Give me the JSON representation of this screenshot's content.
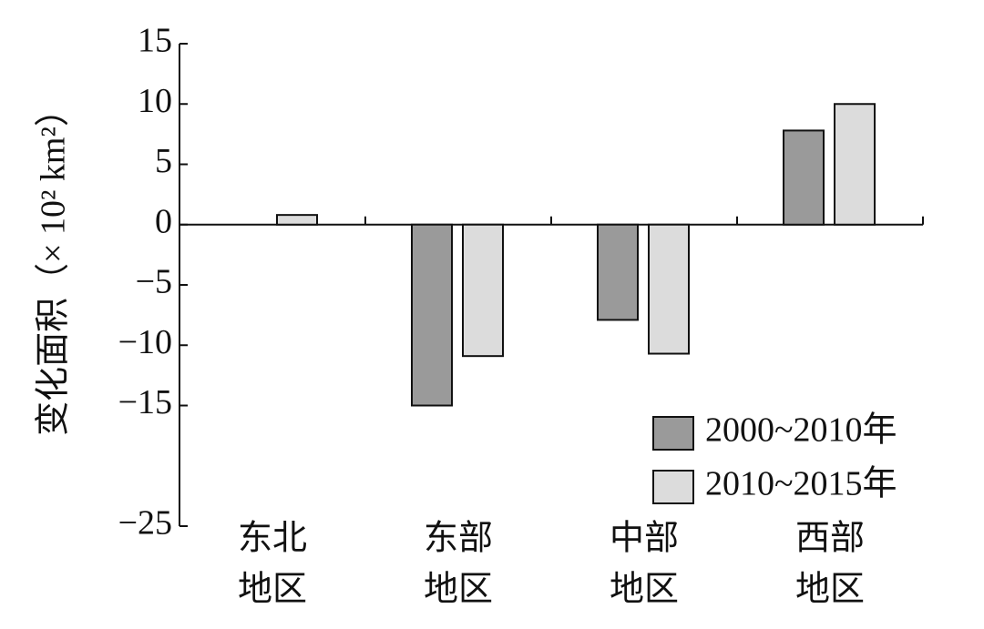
{
  "chart_data": {
    "type": "bar",
    "y_label": "变化面积（× 10² km²）",
    "categories": [
      [
        "东北",
        "地区"
      ],
      [
        "东部",
        "地区"
      ],
      [
        "中部",
        "地区"
      ],
      [
        "西部",
        "地区"
      ]
    ],
    "series": [
      {
        "name": "2000~2010年",
        "color": "#9a9a9a",
        "values": [
          0,
          -15,
          -7.9,
          7.8
        ]
      },
      {
        "name": "2010~2015年",
        "color": "#dcdcdc",
        "values": [
          0.8,
          -10.9,
          -10.7,
          10
        ]
      }
    ],
    "ylim": [
      -25,
      15
    ],
    "yticks": [
      15,
      10,
      5,
      0,
      {
        "value": -5,
        "label": "−5"
      },
      {
        "value": -10,
        "label": "−10"
      },
      {
        "value": -15,
        "label": "−15"
      },
      {
        "value": -25,
        "label": "−25"
      }
    ],
    "legend": "lower right"
  }
}
